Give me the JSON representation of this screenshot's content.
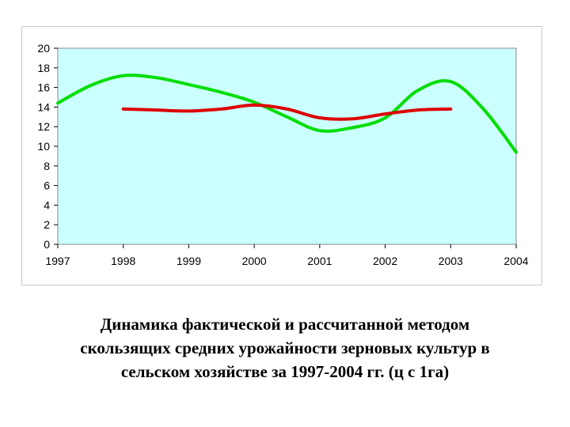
{
  "chart_data": {
    "type": "line",
    "title": "",
    "xlabel": "",
    "ylabel": "",
    "x_ticks": [
      "1997",
      "1998",
      "1999",
      "2000",
      "2001",
      "2002",
      "2003",
      "2004"
    ],
    "y_ticks": [
      "0",
      "2",
      "4",
      "6",
      "8",
      "10",
      "12",
      "14",
      "16",
      "18",
      "20"
    ],
    "xlim": [
      1997,
      2004
    ],
    "ylim": [
      0,
      20
    ],
    "grid": false,
    "legend": "none",
    "plot_background": "#ccffff",
    "series": [
      {
        "color": "#00dd00",
        "x": [
          1997,
          1997.5,
          1998,
          1998.5,
          1999,
          1999.5,
          2000,
          2000.5,
          2001,
          2001.5,
          2002,
          2002.5,
          2003,
          2003.5,
          2004
        ],
        "y": [
          14.4,
          16.2,
          17.2,
          17.0,
          16.3,
          15.5,
          14.5,
          13.0,
          11.6,
          11.9,
          12.9,
          15.7,
          16.6,
          13.8,
          9.4
        ]
      },
      {
        "color": "#dd0000",
        "x": [
          1998,
          1998.5,
          1999,
          1999.5,
          2000,
          2000.5,
          2001,
          2001.5,
          2002,
          2002.5,
          2003
        ],
        "y": [
          13.8,
          13.7,
          13.6,
          13.8,
          14.2,
          13.8,
          12.9,
          12.8,
          13.3,
          13.7,
          13.8
        ]
      }
    ]
  },
  "caption": {
    "line1": "Динамика фактической и рассчитанной методом",
    "line2": "скользящих средних урожайности зерновых культур в",
    "line3": "сельском хозяйстве за 1997-2004 гг. (ц с 1га)"
  }
}
